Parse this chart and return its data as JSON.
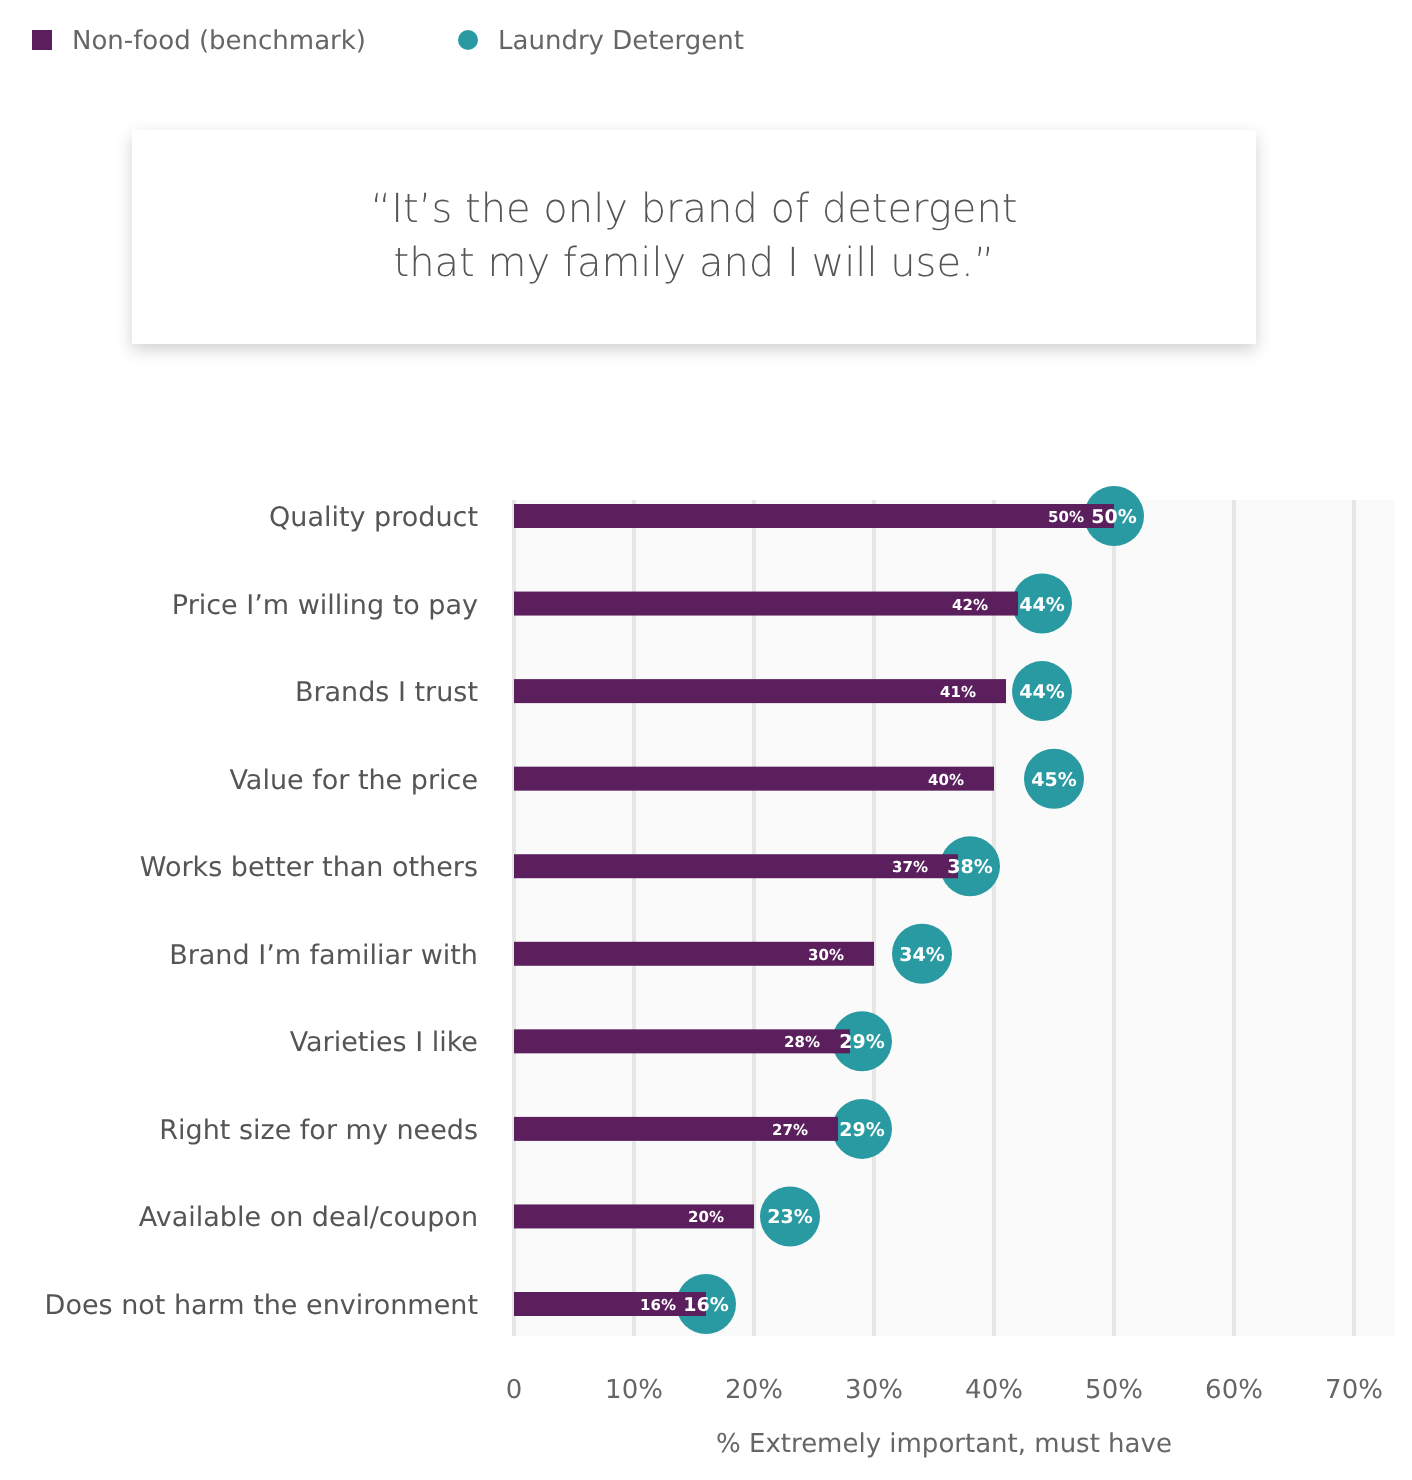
{
  "chart_data": {
    "type": "bar",
    "orientation": "horizontal",
    "xlabel": "% Extremely important, must have",
    "annotations": [
      "“It’s the only brand of detergent that my family and I will use.”"
    ],
    "categories": [
      "Quality product",
      "Price I’m willing to pay",
      "Brands I trust",
      "Value for the price",
      "Works better than others",
      "Brand I’m familiar with",
      "Varieties I like",
      "Right size for my needs",
      "Available on deal/coupon",
      "Does not harm the environment"
    ],
    "series": [
      {
        "name": "Non-food (benchmark)",
        "color": "#5b1f5e",
        "values": [
          50,
          42,
          41,
          40,
          37,
          30,
          28,
          27,
          20,
          16
        ],
        "value_labels": [
          "50%",
          "42%",
          "41%",
          "40%",
          "37%",
          "30%",
          "28%",
          "27%",
          "20%",
          "16%"
        ]
      },
      {
        "name": "Laundry Detergent",
        "type": "scatter",
        "color": "#2a9aa2",
        "x": [
          "Quality product",
          "Price I’m willing to pay",
          "Brands I trust",
          "Value for the price",
          "Works better than others",
          "Brand I’m familiar with",
          "Varieties I like",
          "Right size for my needs",
          "Available on deal/coupon",
          "Does not harm the environment"
        ],
        "values": [
          50,
          44,
          44,
          45,
          38,
          34,
          29,
          29,
          23,
          16
        ],
        "value_labels": [
          "50%",
          "44%",
          "44%",
          "45%",
          "38%",
          "34%",
          "29%",
          "29%",
          "23%",
          "16%"
        ]
      }
    ],
    "xlim": [
      0,
      70
    ],
    "xticks": [
      0,
      {
        "value": 10,
        "label": "10%"
      },
      {
        "value": 20,
        "label": "20%"
      },
      {
        "value": 30,
        "label": "30%"
      },
      {
        "value": 40,
        "label": "40%"
      },
      {
        "value": 50,
        "label": "50%"
      },
      {
        "value": 60,
        "label": "60%"
      },
      {
        "value": 70,
        "label": "70%"
      }
    ],
    "grid": "x",
    "legend": "top left"
  }
}
